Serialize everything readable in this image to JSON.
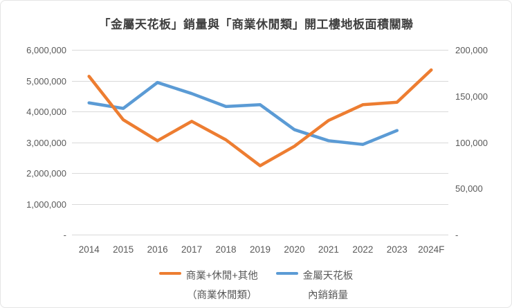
{
  "title": "「金屬天花板」銷量與「商業休閒類」開工樓地板面積關聯",
  "chart_data": {
    "type": "line",
    "categories": [
      "2014",
      "2015",
      "2016",
      "2017",
      "2018",
      "2019",
      "2020",
      "2021",
      "2022",
      "2023",
      "2024F"
    ],
    "series": [
      {
        "name": "金屬天花板",
        "name_line2": "內銷銷量",
        "axis": "right",
        "color": "#5B9BD5",
        "values": [
          143000,
          137000,
          165000,
          153000,
          139000,
          141000,
          114000,
          102000,
          98000,
          113000,
          null
        ]
      },
      {
        "name": "商業+休閒+其他",
        "name_line2": "（商業休閒類）",
        "axis": "left",
        "color": "#ED7D31",
        "values": [
          5150000,
          3740000,
          3060000,
          3690000,
          3090000,
          2250000,
          2880000,
          3720000,
          4230000,
          4310000,
          5360000
        ]
      }
    ],
    "legend_order": [
      1,
      0
    ],
    "left_axis": {
      "min": 0,
      "max": 6000000,
      "tick_labels": [
        "-",
        "1,000,000",
        "2,000,000",
        "3,000,000",
        "4,000,000",
        "5,000,000",
        "6,000,000"
      ]
    },
    "right_axis": {
      "min": 0,
      "max": 200000,
      "tick_labels": [
        "-",
        "50,000",
        "100,000",
        "150,000",
        "200,000"
      ]
    },
    "grid": true,
    "legend_position": "bottom",
    "colors": {
      "gridline": "#d9d9d9",
      "axis_text": "#595959",
      "title_text": "#404040"
    }
  }
}
